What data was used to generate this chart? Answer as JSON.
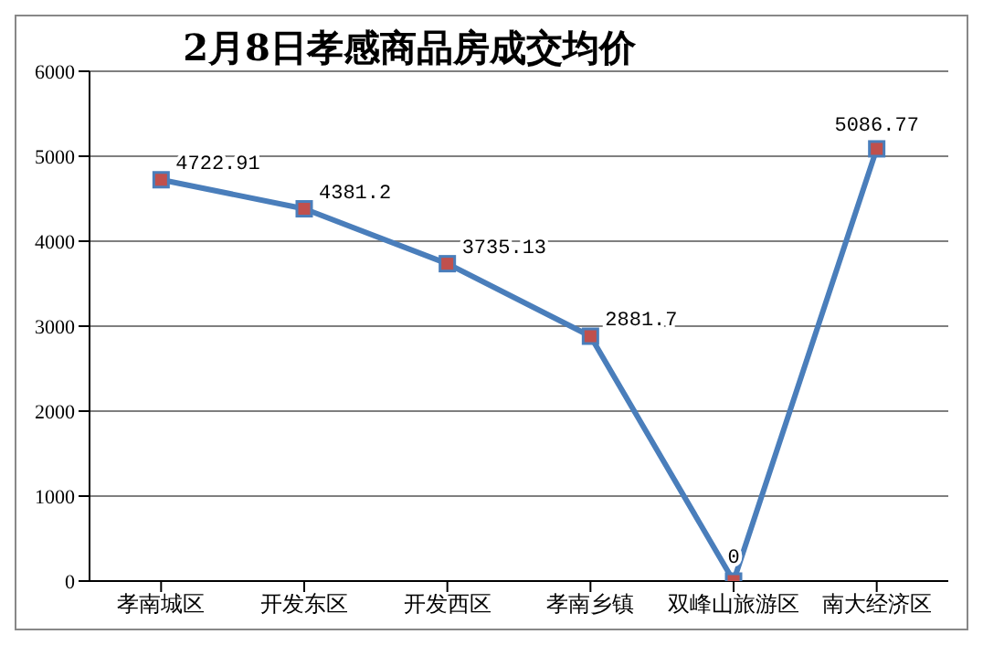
{
  "chart_data": {
    "type": "line",
    "title": "2月8日孝感商品房成交均价",
    "categories": [
      "孝南城区",
      "开发东区",
      "开发西区",
      "孝南乡镇",
      "双峰山旅游区",
      "南大经济区"
    ],
    "series": [
      {
        "color": "#4a7ebb",
        "values": [
          4722.91,
          4381.2,
          3735.13,
          2881.7,
          0,
          5086.77
        ]
      }
    ],
    "ylim": [
      0,
      6000
    ],
    "yticks": [
      0,
      1000,
      2000,
      3000,
      4000,
      5000,
      6000
    ],
    "grid": "y",
    "marker": "square",
    "data_labels": true,
    "legend": false
  }
}
